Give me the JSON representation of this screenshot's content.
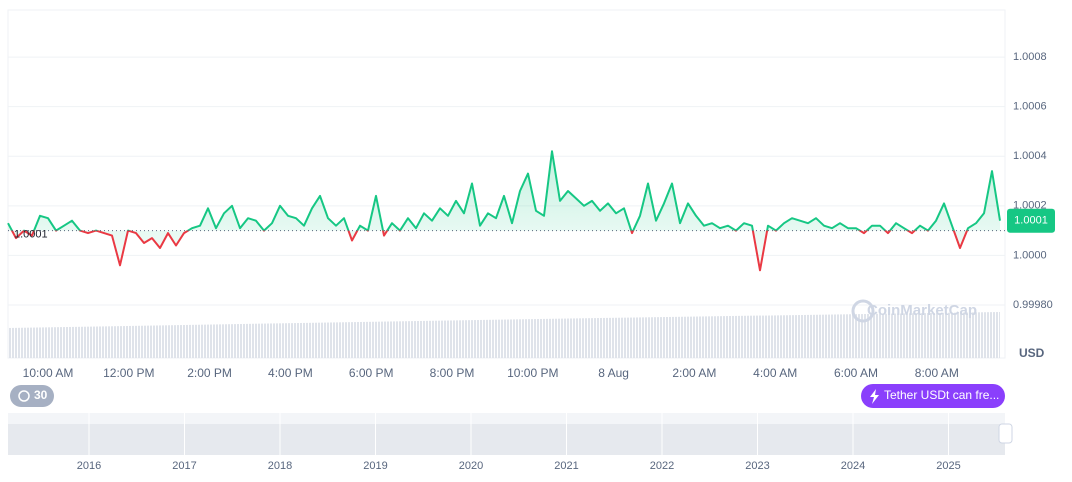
{
  "chart_data": {
    "type": "line",
    "series": [
      {
        "name": "Tether USDt",
        "color": "#16c784",
        "values": [
          1.00013,
          1.00007,
          1.0001,
          1.00008,
          1.00016,
          1.00015,
          1.0001,
          1.00012,
          1.00014,
          1.0001,
          1.00009,
          1.0001,
          1.00009,
          1.00008,
          0.99996,
          1.0001,
          1.00009,
          1.00005,
          1.00007,
          1.00003,
          1.00009,
          1.00004,
          1.00009,
          1.00011,
          1.00012,
          1.00019,
          1.00011,
          1.00017,
          1.0002,
          1.00011,
          1.00015,
          1.00014,
          1.0001,
          1.00013,
          1.0002,
          1.00016,
          1.00015,
          1.00012,
          1.00019,
          1.00024,
          1.00015,
          1.00012,
          1.00015,
          1.00006,
          1.00012,
          1.0001,
          1.00024,
          1.00008,
          1.00013,
          1.0001,
          1.00015,
          1.00011,
          1.00017,
          1.00014,
          1.00019,
          1.00016,
          1.00022,
          1.00017,
          1.00029,
          1.00012,
          1.00017,
          1.00015,
          1.00024,
          1.00013,
          1.00026,
          1.00033,
          1.00018,
          1.00016,
          1.00042,
          1.00022,
          1.00026,
          1.00023,
          1.0002,
          1.00022,
          1.00018,
          1.00021,
          1.00017,
          1.00019,
          1.00009,
          1.00016,
          1.00029,
          1.00014,
          1.00021,
          1.00029,
          1.00013,
          1.00021,
          1.00016,
          1.00012,
          1.00013,
          1.00011,
          1.00012,
          1.0001,
          1.00013,
          1.00012,
          0.99994,
          1.00012,
          1.0001,
          1.00013,
          1.00015,
          1.00014,
          1.00013,
          1.00015,
          1.00012,
          1.00011,
          1.00013,
          1.00011,
          1.00011,
          1.00009,
          1.00012,
          1.00012,
          1.00009,
          1.00013,
          1.00011,
          1.00009,
          1.00012,
          1.0001,
          1.00014,
          1.00021,
          1.00012,
          1.00003,
          1.00011,
          1.00013,
          1.00017,
          1.00034,
          1.00014
        ]
      }
    ],
    "below_color": "#ea3943",
    "baseline": 1.0001,
    "current_price": {
      "value": 1.00014,
      "label": "1.0001"
    },
    "xlim": [
      0,
      124
    ],
    "xticks": [
      {
        "value": 5,
        "label": "10:00 AM"
      },
      {
        "value": 15.1,
        "label": "12:00 PM"
      },
      {
        "value": 25.2,
        "label": "2:00 PM"
      },
      {
        "value": 35.3,
        "label": "4:00 PM"
      },
      {
        "value": 45.4,
        "label": "6:00 PM"
      },
      {
        "value": 55.5,
        "label": "8:00 PM"
      },
      {
        "value": 65.6,
        "label": "10:00 PM"
      },
      {
        "value": 75.7,
        "label": "8 Aug"
      },
      {
        "value": 85.8,
        "label": "2:00 AM"
      },
      {
        "value": 95.9,
        "label": "4:00 AM"
      },
      {
        "value": 106,
        "label": "6:00 AM"
      },
      {
        "value": 116.1,
        "label": "8:00 AM"
      }
    ],
    "ylim": [
      0.9998,
      1.00099
    ],
    "yticks": [
      {
        "value": 0.9998,
        "label": "0.99980"
      },
      {
        "value": 1,
        "label": "1.0000"
      },
      1.0002,
      1.0004,
      1.0006,
      1.0008
    ],
    "grid": true,
    "currency": "USD",
    "watermark": "CoinMarketCap",
    "history_badge": "30",
    "news_pill": "Tether USDt can fre...",
    "navigator_years": [
      "2016",
      "2017",
      "2018",
      "2019",
      "2020",
      "2021",
      "2022",
      "2023",
      "2024",
      "2025"
    ]
  }
}
